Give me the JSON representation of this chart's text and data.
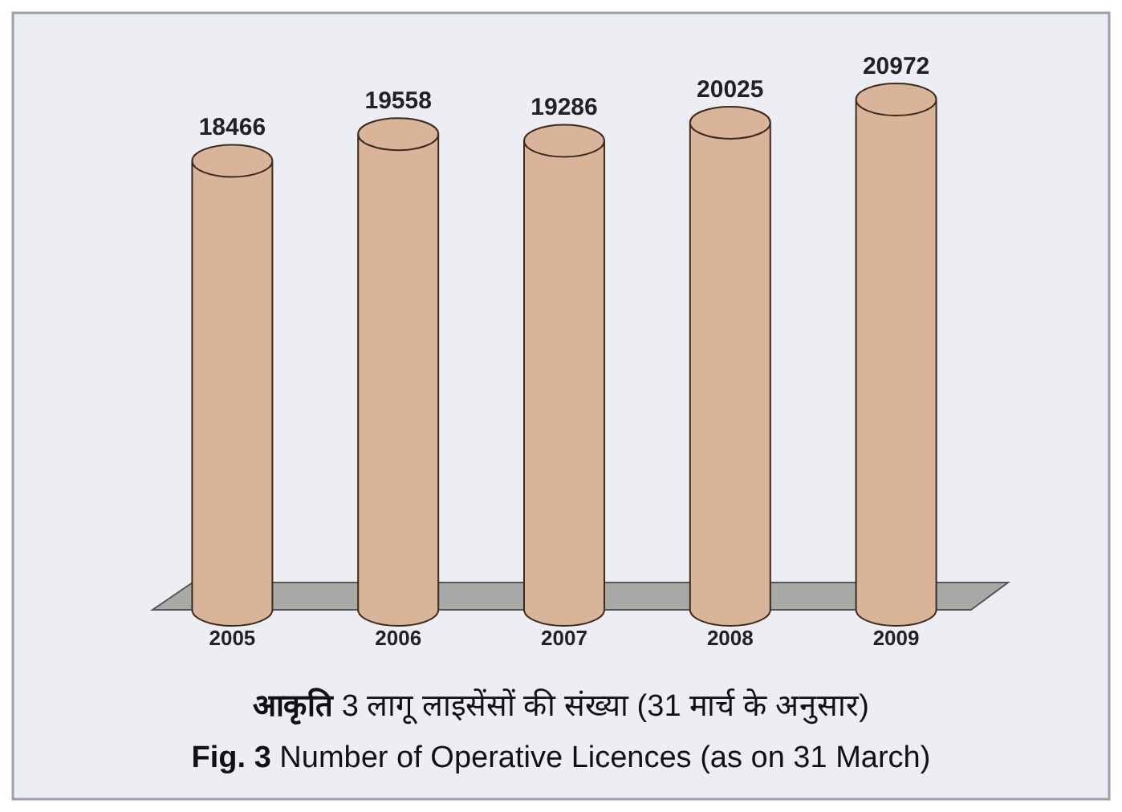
{
  "chart_data": {
    "type": "bar",
    "title": "**आकृति** 3 लागू लाइसेंसों की संख्या (31 मार्च के अनुसार)",
    "subtitle": "**Fig. 3** Number of Operative Licences (as on 31 March)",
    "categories": [
      "2005",
      "2006",
      "2007",
      "2008",
      "2009"
    ],
    "values": [
      18466,
      19558,
      19286,
      20025,
      20972
    ],
    "color": "#d9b498",
    "tick_labels": "x",
    "data_labels": true
  }
}
